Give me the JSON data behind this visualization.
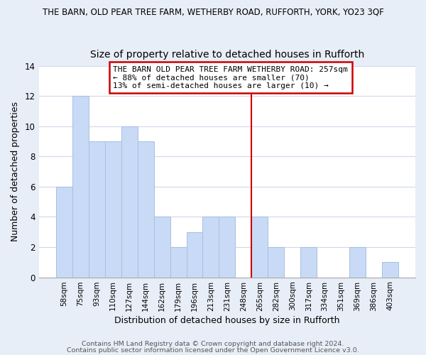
{
  "title_main": "THE BARN, OLD PEAR TREE FARM, WETHERBY ROAD, RUFFORTH, YORK, YO23 3QF",
  "title_sub": "Size of property relative to detached houses in Rufforth",
  "xlabel": "Distribution of detached houses by size in Rufforth",
  "ylabel": "Number of detached properties",
  "bar_labels": [
    "58sqm",
    "75sqm",
    "93sqm",
    "110sqm",
    "127sqm",
    "144sqm",
    "162sqm",
    "179sqm",
    "196sqm",
    "213sqm",
    "231sqm",
    "248sqm",
    "265sqm",
    "282sqm",
    "300sqm",
    "317sqm",
    "334sqm",
    "351sqm",
    "369sqm",
    "386sqm",
    "403sqm"
  ],
  "bar_values": [
    6,
    12,
    9,
    9,
    10,
    9,
    4,
    2,
    3,
    4,
    4,
    0,
    4,
    2,
    0,
    2,
    0,
    0,
    2,
    0,
    1
  ],
  "bar_color": "#c8daf5",
  "bar_edge_color": "#a8c0e0",
  "vline_color": "#cc0000",
  "annotation_text": "THE BARN OLD PEAR TREE FARM WETHERBY ROAD: 257sqm\n← 88% of detached houses are smaller (70)\n13% of semi-detached houses are larger (10) →",
  "annotation_box_color": "#ffffff",
  "annotation_box_edge": "#cc0000",
  "ylim": [
    0,
    14
  ],
  "yticks": [
    0,
    2,
    4,
    6,
    8,
    10,
    12,
    14
  ],
  "footer_line1": "Contains HM Land Registry data © Crown copyright and database right 2024.",
  "footer_line2": "Contains public sector information licensed under the Open Government Licence v3.0.",
  "bg_color": "#e8eef8",
  "plot_bg_color": "#ffffff",
  "grid_color": "#d0d8e8",
  "title_fontsize": 8.5,
  "subtitle_fontsize": 10,
  "axis_label_fontsize": 9,
  "tick_fontsize": 7.5,
  "footer_fontsize": 6.8
}
